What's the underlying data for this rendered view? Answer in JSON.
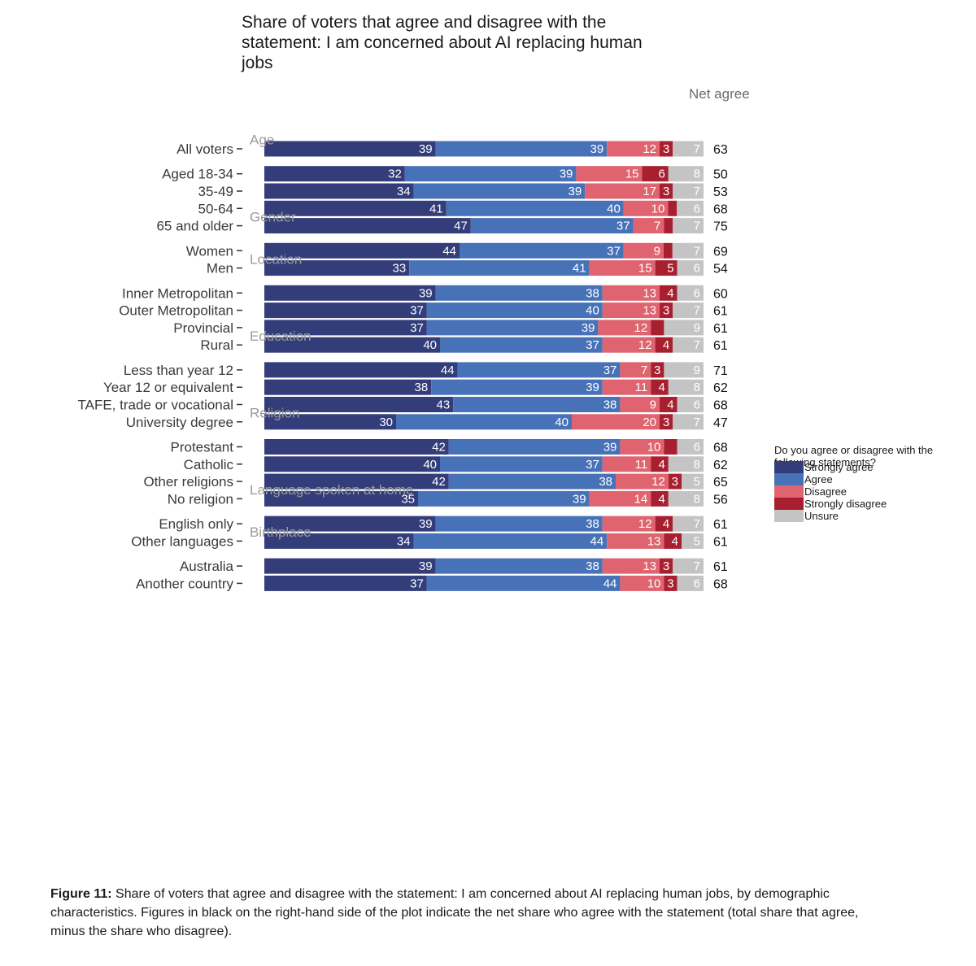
{
  "chart_data": {
    "type": "bar",
    "orientation": "horizontal",
    "stacked": true,
    "title_lines": [
      "Share of voters that agree and disagree with the",
      "statement: I am concerned about AI replacing human",
      "jobs"
    ],
    "net_header": "Net agree",
    "legend": {
      "title_lines": [
        "Do you agree or disagree with the",
        "following statements?"
      ],
      "position": "right"
    },
    "series": [
      {
        "key": "sa",
        "name": "Strongly agree",
        "color": "#333d7a"
      },
      {
        "key": "a",
        "name": "Agree",
        "color": "#4872b8"
      },
      {
        "key": "d",
        "name": "Disagree",
        "color": "#df6470"
      },
      {
        "key": "sd",
        "name": "Strongly disagree",
        "color": "#a81f30"
      },
      {
        "key": "u",
        "name": "Unsure",
        "color": "#c4c4c4"
      }
    ],
    "groups": [
      {
        "label": "",
        "rows": [
          {
            "label": "All voters",
            "sa": 39,
            "a": 39,
            "d": 12,
            "sd": 3,
            "u": 7,
            "net": 63,
            "shown": [
              "39",
              "39",
              "12",
              "3",
              "7"
            ]
          }
        ]
      },
      {
        "label": "Age",
        "rows": [
          {
            "label": "Aged 18-34",
            "sa": 32,
            "a": 39,
            "d": 15,
            "sd": 6,
            "u": 8,
            "net": 50,
            "shown": [
              "32",
              "39",
              "15",
              "6",
              "8"
            ]
          },
          {
            "label": "35-49",
            "sa": 34,
            "a": 39,
            "d": 17,
            "sd": 3,
            "u": 7,
            "net": 53,
            "shown": [
              "34",
              "39",
              "17",
              "3",
              "7"
            ]
          },
          {
            "label": "50-64",
            "sa": 41,
            "a": 40,
            "d": 10,
            "sd": 2,
            "u": 6,
            "net": 68,
            "shown": [
              "41",
              "40",
              "10",
              "",
              "6"
            ]
          },
          {
            "label": "65 and older",
            "sa": 47,
            "a": 37,
            "d": 7,
            "sd": 2,
            "u": 7,
            "net": 75,
            "shown": [
              "47",
              "37",
              "7",
              "",
              "7"
            ]
          }
        ]
      },
      {
        "label": "Gender",
        "rows": [
          {
            "label": "Women",
            "sa": 44,
            "a": 37,
            "d": 9,
            "sd": 2,
            "u": 7,
            "net": 69,
            "shown": [
              "44",
              "37",
              "9",
              "",
              "7"
            ]
          },
          {
            "label": "Men",
            "sa": 33,
            "a": 41,
            "d": 15,
            "sd": 5,
            "u": 6,
            "net": 54,
            "shown": [
              "33",
              "41",
              "15",
              "5",
              "6"
            ]
          }
        ]
      },
      {
        "label": "Location",
        "rows": [
          {
            "label": "Inner Metropolitan",
            "sa": 39,
            "a": 38,
            "d": 13,
            "sd": 4,
            "u": 6,
            "net": 60,
            "shown": [
              "39",
              "38",
              "13",
              "4",
              "6"
            ]
          },
          {
            "label": "Outer Metropolitan",
            "sa": 37,
            "a": 40,
            "d": 13,
            "sd": 3,
            "u": 7,
            "net": 61,
            "shown": [
              "37",
              "40",
              "13",
              "3",
              "7"
            ]
          },
          {
            "label": "Provincial",
            "sa": 37,
            "a": 39,
            "d": 12,
            "sd": 3,
            "u": 9,
            "net": 61,
            "shown": [
              "37",
              "39",
              "12",
              "",
              "9"
            ]
          },
          {
            "label": "Rural",
            "sa": 40,
            "a": 37,
            "d": 12,
            "sd": 4,
            "u": 7,
            "net": 61,
            "shown": [
              "40",
              "37",
              "12",
              "4",
              "7"
            ]
          }
        ]
      },
      {
        "label": "Education",
        "rows": [
          {
            "label": "Less than year 12",
            "sa": 44,
            "a": 37,
            "d": 7,
            "sd": 3,
            "u": 9,
            "net": 71,
            "shown": [
              "44",
              "37",
              "7",
              "3",
              "9"
            ]
          },
          {
            "label": "Year 12 or equivalent",
            "sa": 38,
            "a": 39,
            "d": 11,
            "sd": 4,
            "u": 8,
            "net": 62,
            "shown": [
              "38",
              "39",
              "11",
              "4",
              "8"
            ]
          },
          {
            "label": "TAFE, trade or vocational",
            "sa": 43,
            "a": 38,
            "d": 9,
            "sd": 4,
            "u": 6,
            "net": 68,
            "shown": [
              "43",
              "38",
              "9",
              "4",
              "6"
            ]
          },
          {
            "label": "University degree",
            "sa": 30,
            "a": 40,
            "d": 20,
            "sd": 3,
            "u": 7,
            "net": 47,
            "shown": [
              "30",
              "40",
              "20",
              "3",
              "7"
            ]
          }
        ]
      },
      {
        "label": "Religion",
        "rows": [
          {
            "label": "Protestant",
            "sa": 42,
            "a": 39,
            "d": 10,
            "sd": 3,
            "u": 6,
            "net": 68,
            "shown": [
              "42",
              "39",
              "10",
              "",
              "6"
            ]
          },
          {
            "label": "Catholic",
            "sa": 40,
            "a": 37,
            "d": 11,
            "sd": 4,
            "u": 8,
            "net": 62,
            "shown": [
              "40",
              "37",
              "11",
              "4",
              "8"
            ]
          },
          {
            "label": "Other religions",
            "sa": 42,
            "a": 38,
            "d": 12,
            "sd": 3,
            "u": 5,
            "net": 65,
            "shown": [
              "42",
              "38",
              "12",
              "3",
              "5"
            ]
          },
          {
            "label": "No religion",
            "sa": 35,
            "a": 39,
            "d": 14,
            "sd": 4,
            "u": 8,
            "net": 56,
            "shown": [
              "35",
              "39",
              "14",
              "4",
              "8"
            ]
          }
        ]
      },
      {
        "label": "Language spoken at home",
        "rows": [
          {
            "label": "English only",
            "sa": 39,
            "a": 38,
            "d": 12,
            "sd": 4,
            "u": 7,
            "net": 61,
            "shown": [
              "39",
              "38",
              "12",
              "4",
              "7"
            ]
          },
          {
            "label": "Other languages",
            "sa": 34,
            "a": 44,
            "d": 13,
            "sd": 4,
            "u": 5,
            "net": 61,
            "shown": [
              "34",
              "44",
              "13",
              "4",
              "5"
            ]
          }
        ]
      },
      {
        "label": "Birthplace",
        "rows": [
          {
            "label": "Australia",
            "sa": 39,
            "a": 38,
            "d": 13,
            "sd": 3,
            "u": 7,
            "net": 61,
            "shown": [
              "39",
              "38",
              "13",
              "3",
              "7"
            ]
          },
          {
            "label": "Another country",
            "sa": 37,
            "a": 44,
            "d": 10,
            "sd": 3,
            "u": 6,
            "net": 68,
            "shown": [
              "37",
              "44",
              "10",
              "3",
              "6"
            ]
          }
        ]
      }
    ]
  },
  "caption": {
    "label": "Figure 11:",
    "text": "Share of voters that agree and disagree with the statement: I am concerned about AI replacing human jobs, by demographic characteristics. Figures in black on the right-hand side of the plot indicate the net share who agree with the statement (total share that agree, minus the share who disagree)."
  }
}
